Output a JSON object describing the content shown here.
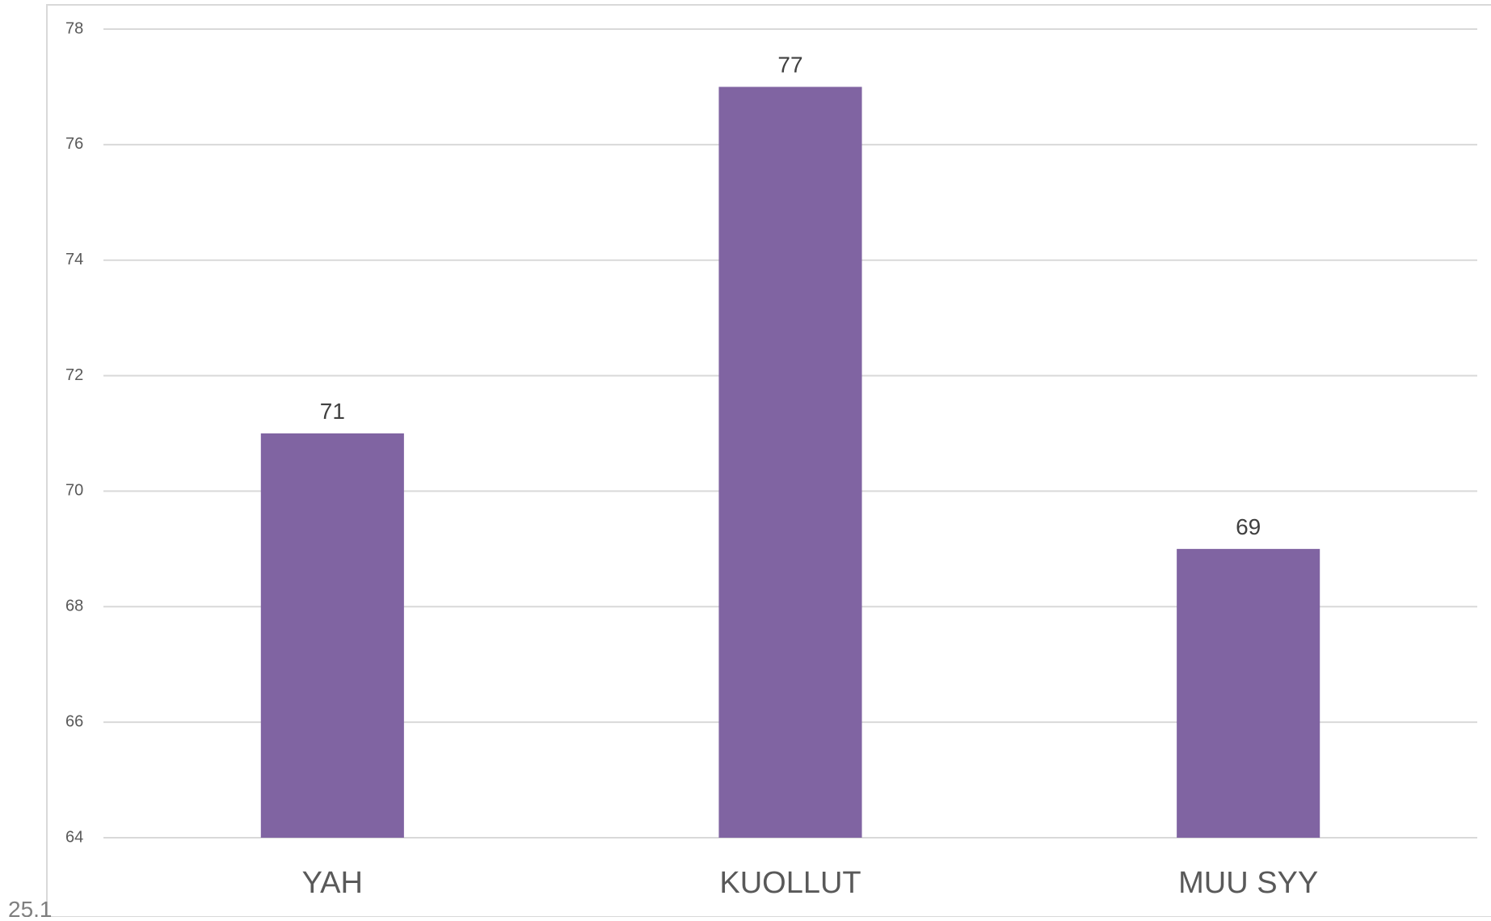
{
  "footer": {
    "date_fragment": "25.1"
  },
  "chart_data": {
    "type": "bar",
    "categories": [
      "YAH",
      "KUOLLUT",
      "MUU SYY"
    ],
    "values": [
      71,
      77,
      69
    ],
    "title": "",
    "xlabel": "",
    "ylabel": "",
    "ylim": [
      64,
      78
    ],
    "yticks": [
      64,
      66,
      68,
      70,
      72,
      74,
      76,
      78
    ],
    "grid": true,
    "legend": "none",
    "data_labels": true,
    "colors": {
      "bar": "#8064a2",
      "grid": "#d9d9d9",
      "axis_text": "#595959",
      "data_label_text": "#404040",
      "frame": "#d9d9d9"
    }
  }
}
